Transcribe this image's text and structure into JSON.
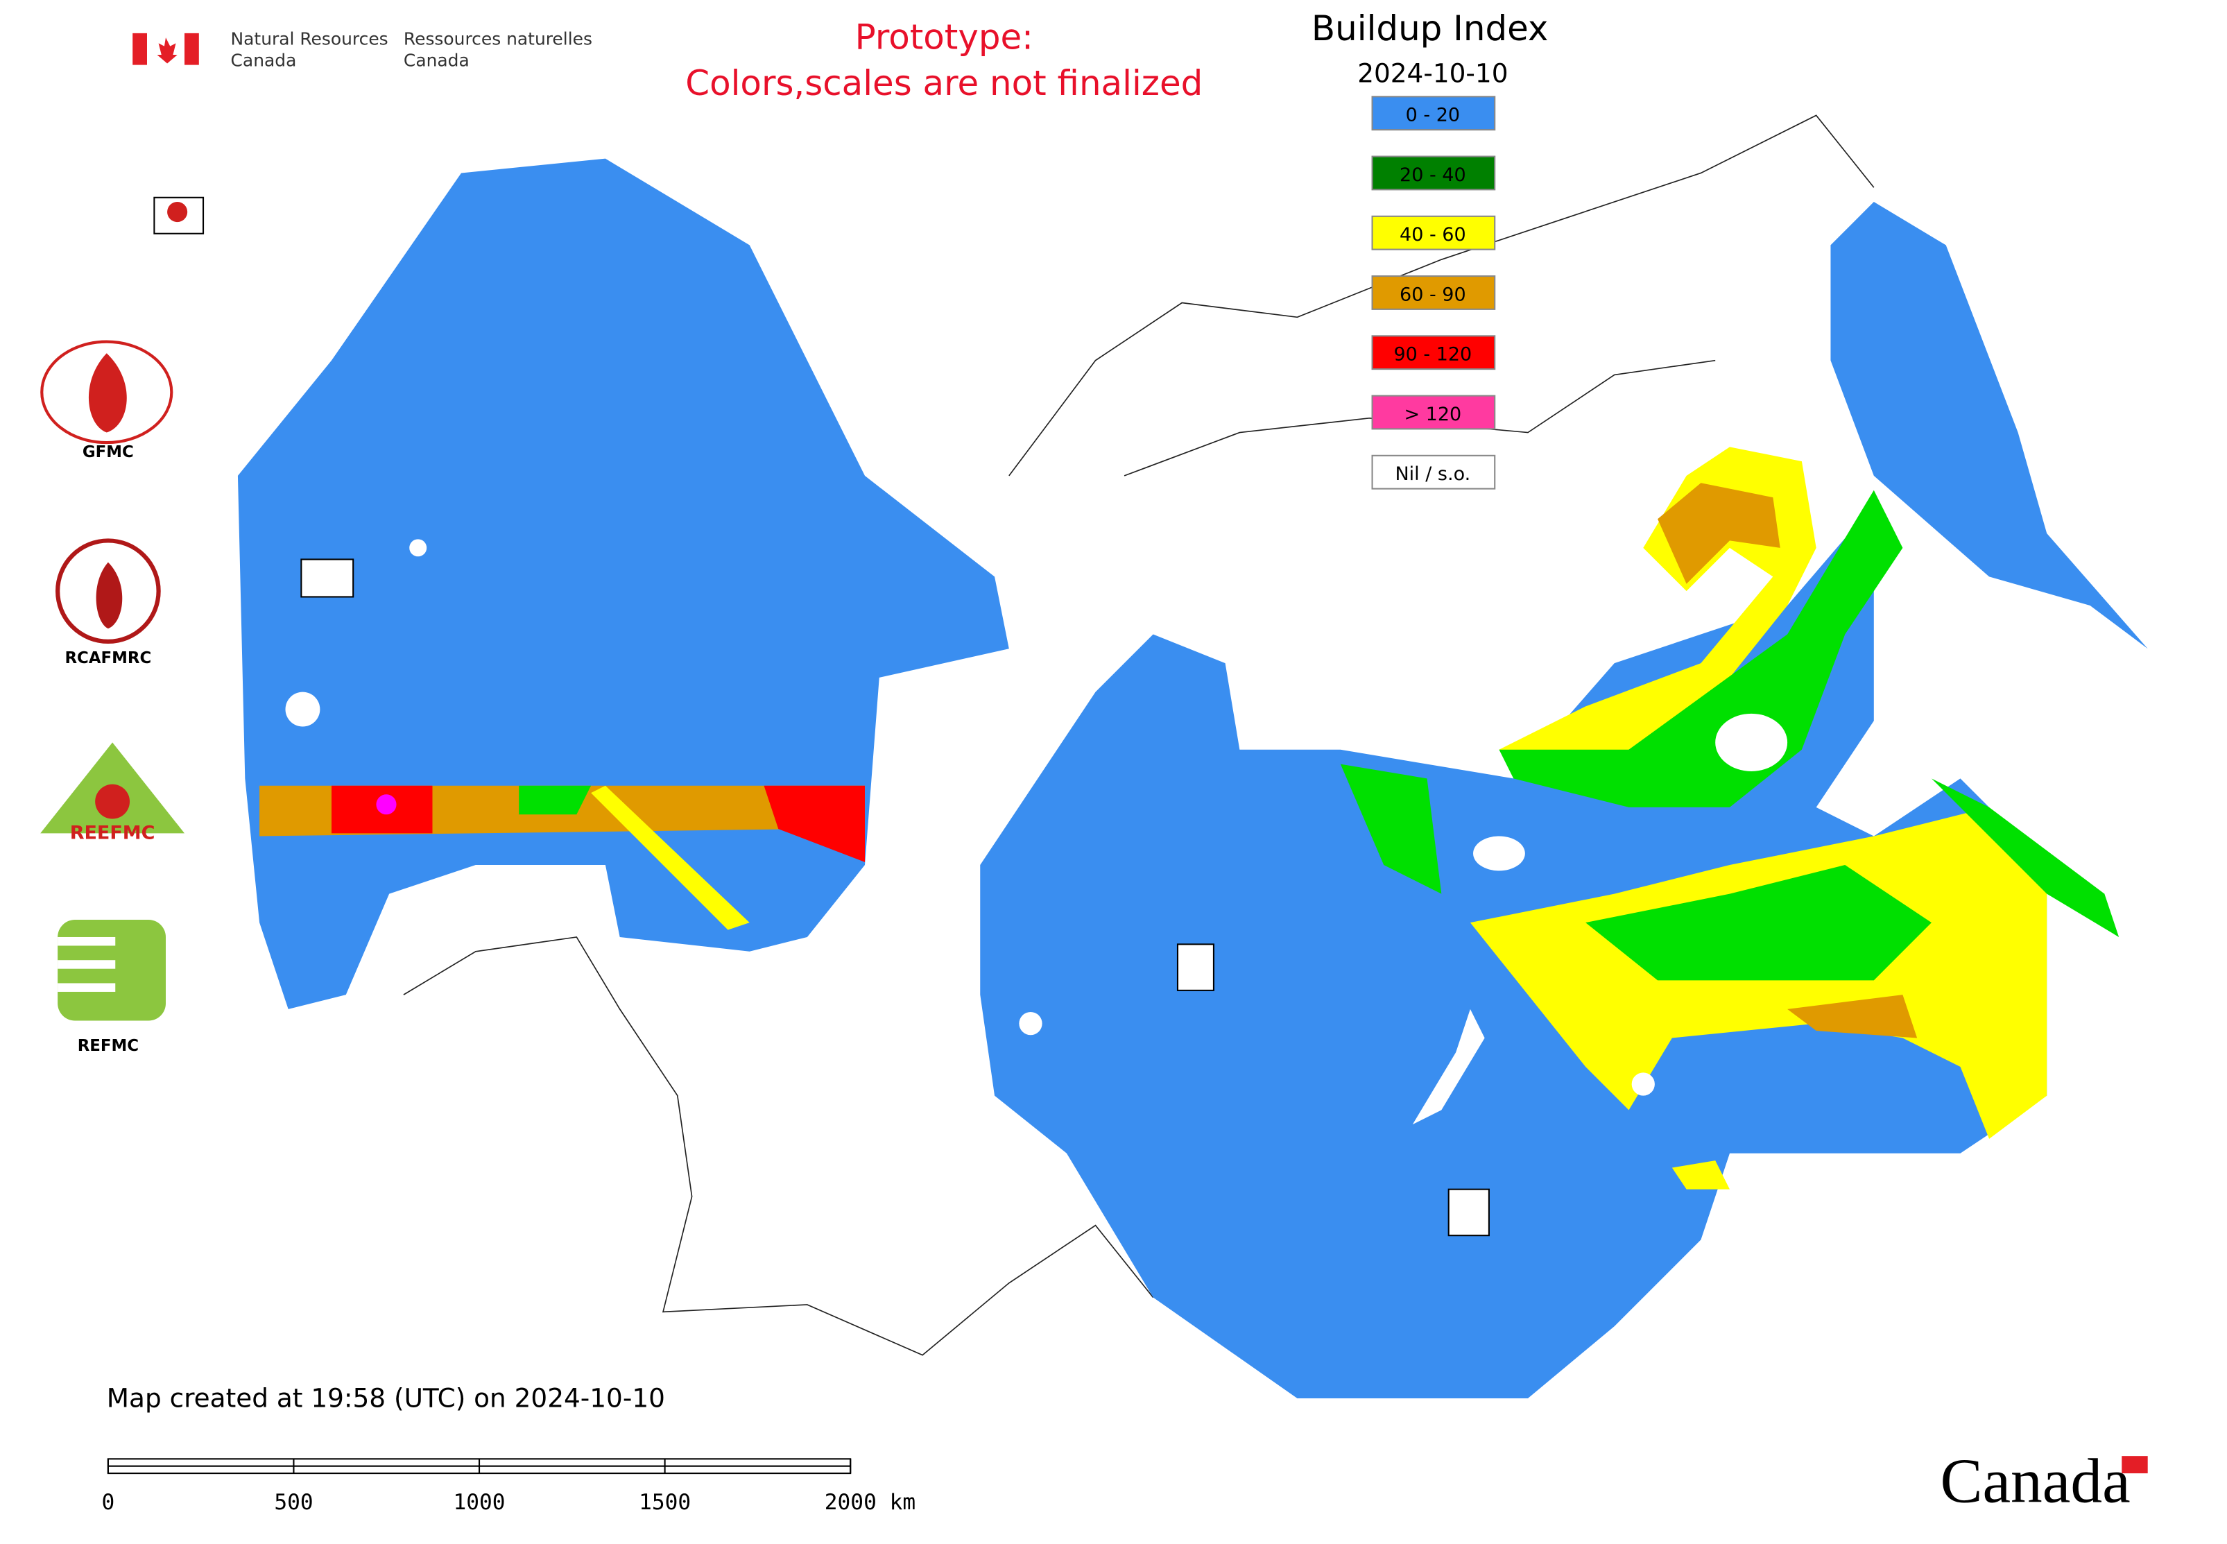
{
  "header": {
    "agency_en": [
      "Natural Resources",
      "Canada"
    ],
    "agency_fr": [
      "Ressources naturelles",
      "Canada"
    ],
    "notice": [
      "Prototype:",
      "Colors,scales are not finalized"
    ]
  },
  "legend": {
    "title": "Buildup Index",
    "date": "2024-10-10",
    "items": [
      {
        "label": "0 - 20",
        "color": "#3a8ef0"
      },
      {
        "label": "20 - 40",
        "color": "#008000"
      },
      {
        "label": "40 - 60",
        "color": "#ffff00"
      },
      {
        "label": "60 - 90",
        "color": "#e09a00"
      },
      {
        "label": "90 - 120",
        "color": "#ff0000"
      },
      {
        "label": "> 120",
        "color": "#ff3aa0"
      },
      {
        "label": "Nil / s.o.",
        "color": "#ffffff"
      }
    ]
  },
  "logos": [
    "GFMC",
    "RCAFMRC",
    "REEFMC",
    "REFMC"
  ],
  "footer": {
    "created": "Map created at 19:58 (UTC) on 2024-10-10",
    "wordmark": "Canada"
  },
  "scale_bar": {
    "labels": [
      "0",
      "500",
      "1000",
      "1500",
      "2000 km"
    ]
  }
}
